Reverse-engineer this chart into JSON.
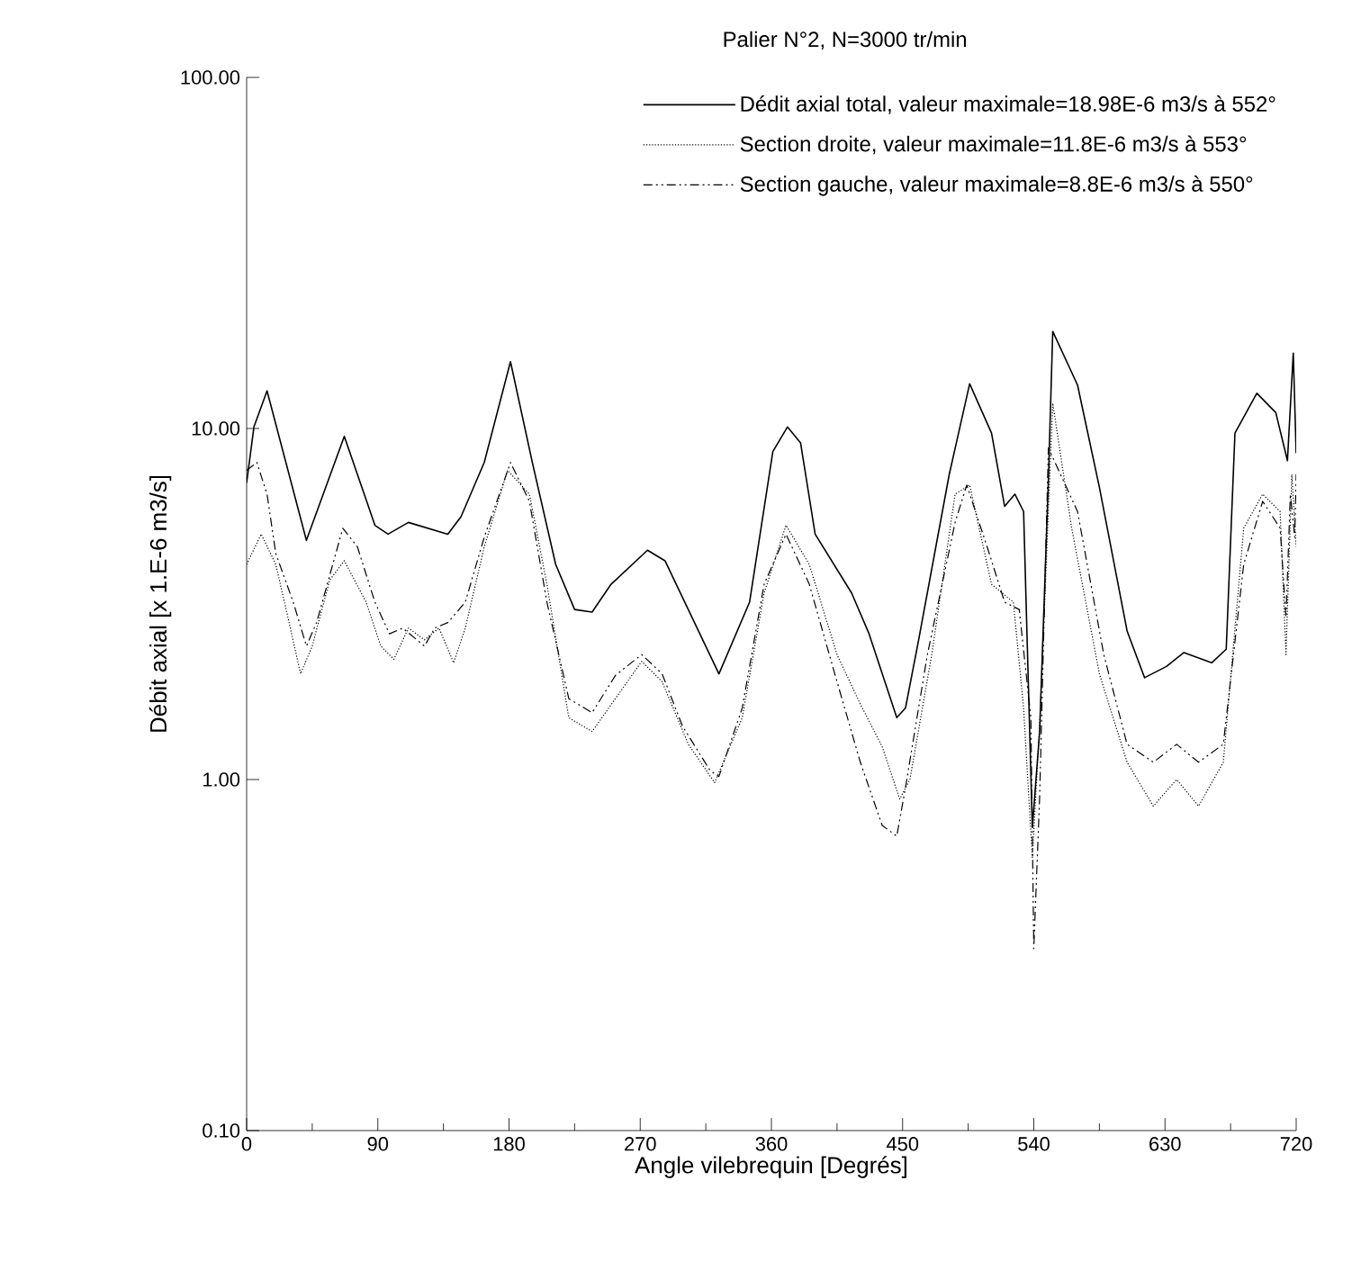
{
  "chart_data": {
    "type": "line",
    "title": "Palier N°2, N=3000 tr/min",
    "xlabel": "Angle vilebrequin [Degrés]",
    "ylabel": "Débit axial [x 1.E-6 m3/s]",
    "log": "y",
    "legend": "top right",
    "xlim": [
      0,
      720
    ],
    "xticks": [
      0,
      90,
      180,
      270,
      360,
      450,
      540,
      630,
      720
    ],
    "ylim": [
      0.1,
      100
    ],
    "yticks": [
      {
        "value": 0.1,
        "label": "0.10"
      },
      {
        "value": 1,
        "label": "1.00"
      },
      {
        "value": 10,
        "label": "10.00"
      },
      {
        "value": 100,
        "label": "100.00"
      }
    ],
    "series": [
      {
        "name": "Dédit axial total, valeur maximale=18.98E-6 m3/s à 552°",
        "color": "#000000",
        "line_style": "solid",
        "x": [
          0,
          5,
          14,
          41,
          67,
          88,
          97,
          111,
          138,
          147,
          163,
          181,
          196,
          212,
          225,
          237,
          250,
          275,
          287,
          324,
          345,
          361,
          371,
          380,
          390,
          415,
          427,
          446,
          452,
          461,
          482,
          496,
          511,
          520,
          527,
          533,
          539,
          544,
          550,
          553,
          570,
          585,
          604,
          616,
          631,
          643,
          662,
          672,
          678,
          693,
          706,
          714,
          718,
          720
        ],
        "values": [
          7.0,
          10.1,
          12.8,
          4.8,
          9.5,
          5.3,
          5.0,
          5.4,
          5.0,
          5.6,
          8.0,
          15.5,
          8.0,
          4.1,
          3.05,
          3.0,
          3.6,
          4.5,
          4.2,
          2.0,
          3.2,
          8.6,
          10.1,
          9.1,
          5.0,
          3.4,
          2.6,
          1.5,
          1.6,
          2.5,
          7.4,
          13.4,
          9.7,
          6.0,
          6.5,
          5.8,
          0.73,
          1.37,
          7.1,
          18.9,
          13.3,
          6.8,
          2.65,
          1.95,
          2.1,
          2.3,
          2.15,
          2.35,
          9.7,
          12.6,
          11.1,
          8.1,
          16.4,
          8.5
        ]
      },
      {
        "name": "Section droite, valeur maximale=11.8E-6 m3/s à 553°",
        "color": "#000000",
        "line_style": "dotted",
        "x": [
          0,
          10,
          20,
          30,
          37,
          45,
          57,
          67,
          82,
          92,
          101,
          111,
          122,
          132,
          142,
          150,
          163,
          179,
          194,
          206,
          221,
          237,
          253,
          271,
          285,
          303,
          321,
          340,
          355,
          370,
          386,
          405,
          421,
          436,
          448,
          455,
          470,
          486,
          496,
          511,
          526,
          533,
          539,
          544,
          553,
          566,
          585,
          604,
          622,
          638,
          653,
          670,
          684,
          697,
          709,
          713,
          717,
          720
        ],
        "values": [
          4.1,
          5.0,
          4.1,
          2.7,
          2.0,
          2.4,
          3.7,
          4.2,
          3.2,
          2.4,
          2.2,
          2.7,
          2.5,
          2.7,
          2.15,
          2.7,
          4.6,
          7.6,
          6.5,
          3.6,
          1.5,
          1.37,
          1.7,
          2.17,
          1.9,
          1.26,
          0.98,
          1.5,
          3.4,
          5.3,
          4.1,
          2.27,
          1.64,
          1.24,
          0.88,
          1.0,
          2.27,
          6.5,
          6.9,
          3.6,
          3.2,
          1.6,
          0.6,
          1.42,
          11.8,
          5.2,
          2.0,
          1.12,
          0.84,
          1.0,
          0.84,
          1.12,
          5.2,
          6.5,
          5.8,
          2.27,
          7.4,
          4.6
        ]
      },
      {
        "name": "Section gauche, valeur maximale=8.8E-6 m3/s à 550°",
        "color": "#000000",
        "line_style": "dashdotted",
        "x": [
          0,
          7,
          14,
          20,
          32,
          41,
          48,
          66,
          76,
          88,
          98,
          107,
          122,
          129,
          138,
          150,
          163,
          181,
          194,
          206,
          221,
          237,
          253,
          271,
          285,
          299,
          318,
          324,
          340,
          355,
          370,
          386,
          405,
          421,
          436,
          446,
          452,
          467,
          486,
          494,
          508,
          520,
          530,
          538,
          540,
          544,
          550,
          570,
          588,
          604,
          622,
          638,
          653,
          670,
          684,
          697,
          709,
          713,
          716,
          719,
          720
        ],
        "values": [
          7.6,
          8.0,
          6.5,
          4.4,
          3.2,
          2.4,
          2.8,
          5.2,
          4.6,
          3.2,
          2.6,
          2.7,
          2.4,
          2.7,
          2.8,
          3.2,
          4.9,
          8.0,
          6.2,
          3.2,
          1.7,
          1.55,
          1.98,
          2.27,
          2.0,
          1.42,
          1.06,
          1.02,
          1.6,
          3.6,
          5.0,
          3.6,
          1.9,
          1.12,
          0.74,
          0.69,
          0.95,
          2.27,
          5.4,
          6.9,
          4.6,
          3.2,
          3.05,
          1.5,
          0.33,
          0.89,
          8.8,
          5.8,
          2.27,
          1.26,
          1.12,
          1.26,
          1.12,
          1.26,
          4.1,
          6.2,
          5.2,
          2.9,
          6.5,
          4.9,
          7.4
        ]
      }
    ]
  }
}
